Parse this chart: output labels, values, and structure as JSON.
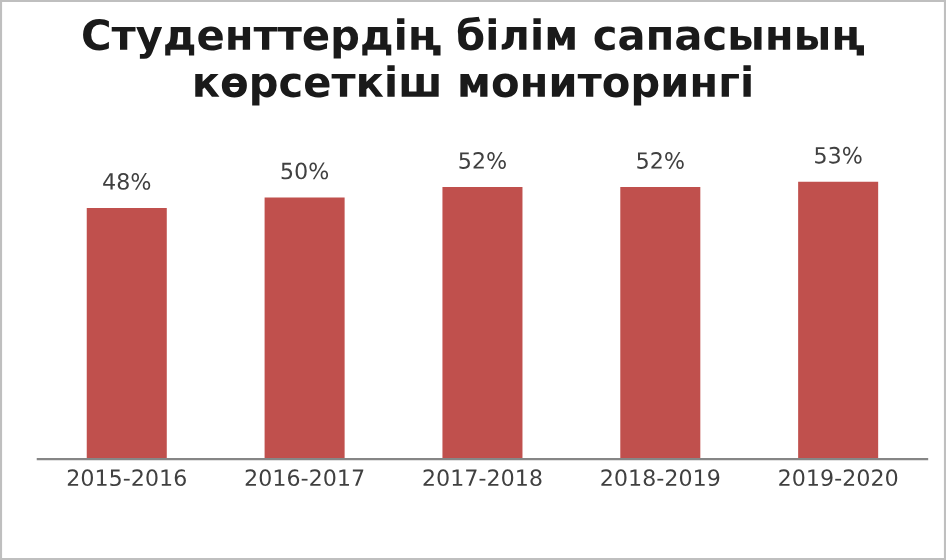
{
  "chart_data": {
    "type": "bar",
    "title": "Студенттердің білім сапасының көрсеткіш мониторингі",
    "categories": [
      "2015-2016",
      "2016-2017",
      "2017-2018",
      "2018-2019",
      "2019-2020"
    ],
    "values": [
      48,
      50,
      52,
      52,
      53
    ],
    "value_labels": [
      "48%",
      "50%",
      "52%",
      "52%",
      "53%"
    ],
    "color": "#c0504d",
    "tick_labels": "x",
    "grid": false,
    "legend": false
  }
}
